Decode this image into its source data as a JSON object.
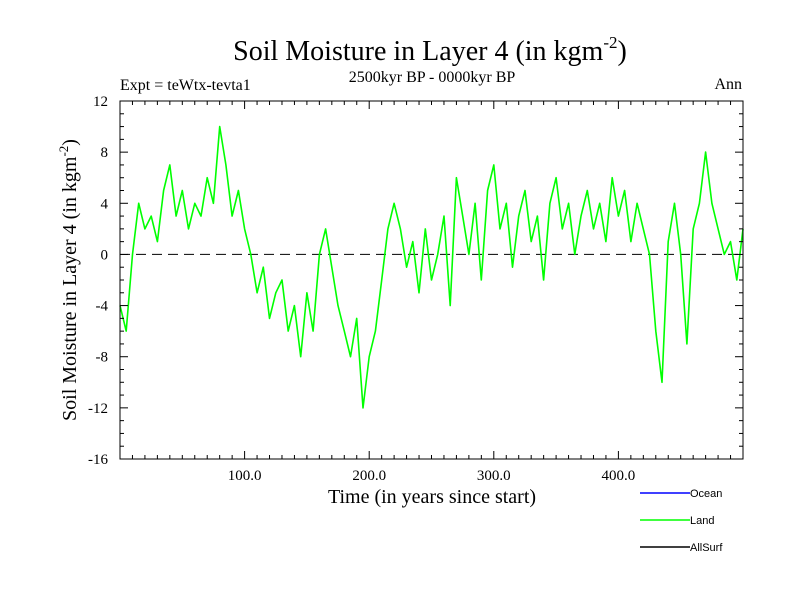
{
  "chart_data": {
    "type": "line",
    "title_main": "Soil Moisture in Layer 4 (in kgm",
    "title_sup": "-2",
    "title_close": ")",
    "subtitle": "2500kyr BP - 0000kyr BP",
    "expt_label": "Expt = teWtx-tevta1",
    "season_label": "Ann",
    "xlabel": "Time (in years since start)",
    "ylabel_main": "Soil Moisture in Layer 4 (in kgm",
    "ylabel_sup": "-2",
    "ylabel_close": ")",
    "xlim": [
      0,
      500
    ],
    "ylim": [
      -16,
      12
    ],
    "x_ticks": [
      100,
      200,
      300,
      400
    ],
    "x_tick_labels": [
      "100.0",
      "200.0",
      "300.0",
      "400.0"
    ],
    "y_ticks": [
      -16,
      -12,
      -8,
      -4,
      0,
      4,
      8,
      12
    ],
    "y_tick_labels": [
      "-16",
      "-12",
      "-8",
      "-4",
      "0",
      "4",
      "8",
      "12"
    ],
    "zero_line": true,
    "legend": [
      {
        "name": "Ocean",
        "color": "#0000ff"
      },
      {
        "name": "Land",
        "color": "#00ff00"
      },
      {
        "name": "AllSurf",
        "color": "#000000"
      }
    ],
    "series": [
      {
        "name": "Land",
        "color": "#00ff00",
        "x": [
          0,
          5,
          10,
          15,
          20,
          25,
          30,
          35,
          40,
          45,
          50,
          55,
          60,
          65,
          70,
          75,
          80,
          85,
          90,
          95,
          100,
          105,
          110,
          115,
          120,
          125,
          130,
          135,
          140,
          145,
          150,
          155,
          160,
          165,
          170,
          175,
          180,
          185,
          190,
          195,
          200,
          205,
          210,
          215,
          220,
          225,
          230,
          235,
          240,
          245,
          250,
          255,
          260,
          265,
          270,
          275,
          280,
          285,
          290,
          295,
          300,
          305,
          310,
          315,
          320,
          325,
          330,
          335,
          340,
          345,
          350,
          355,
          360,
          365,
          370,
          375,
          380,
          385,
          390,
          395,
          400,
          405,
          410,
          415,
          420,
          425,
          430,
          435,
          440,
          445,
          450,
          455,
          460,
          465,
          470,
          475,
          480,
          485,
          490,
          495,
          500
        ],
        "y": [
          -4,
          -6,
          0,
          4,
          2,
          3,
          1,
          5,
          7,
          3,
          5,
          2,
          4,
          3,
          6,
          4,
          10,
          7,
          3,
          5,
          2,
          0,
          -3,
          -1,
          -5,
          -3,
          -2,
          -6,
          -4,
          -8,
          -3,
          -6,
          0,
          2,
          -1,
          -4,
          -6,
          -8,
          -5,
          -12,
          -8,
          -6,
          -2,
          2,
          4,
          2,
          -1,
          1,
          -3,
          2,
          -2,
          0,
          3,
          -4,
          6,
          3,
          0,
          4,
          -2,
          5,
          7,
          2,
          4,
          -1,
          3,
          5,
          1,
          3,
          -2,
          4,
          6,
          2,
          4,
          0,
          3,
          5,
          2,
          4,
          1,
          6,
          3,
          5,
          1,
          4,
          2,
          0,
          -6,
          -10,
          1,
          4,
          0,
          -7,
          2,
          4,
          8,
          4,
          2,
          0,
          1,
          -2,
          2
        ]
      }
    ]
  }
}
